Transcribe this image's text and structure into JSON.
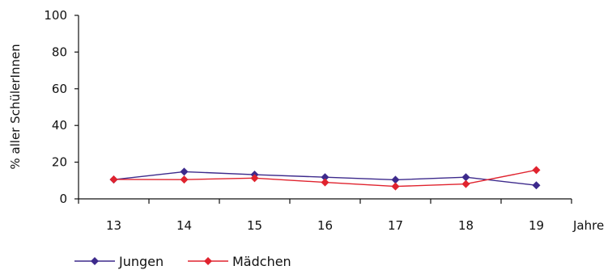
{
  "chart_data": {
    "type": "line",
    "x": [
      13,
      14,
      15,
      16,
      17,
      18,
      19
    ],
    "x_tick_labels": [
      "13",
      "14",
      "15",
      "16",
      "17",
      "18",
      "19"
    ],
    "xlabel": "Jahre",
    "ylabel": "% aller SchülerInnen",
    "ylim": [
      0,
      100
    ],
    "y_ticks": [
      0,
      20,
      40,
      60,
      80,
      100
    ],
    "y_tick_labels": [
      "0",
      "20",
      "40",
      "60",
      "80",
      "100"
    ],
    "grid": false,
    "legend_position": "bottom-left",
    "series": [
      {
        "name": "Jungen",
        "color": "#3d2a8c",
        "marker": "diamond",
        "values": [
          10.5,
          14.8,
          13.2,
          11.8,
          10.4,
          11.8,
          7.4
        ]
      },
      {
        "name": "Mädchen",
        "color": "#e0232e",
        "marker": "diamond",
        "values": [
          10.6,
          10.5,
          11.3,
          9.0,
          6.8,
          8.1,
          15.7
        ]
      }
    ]
  }
}
